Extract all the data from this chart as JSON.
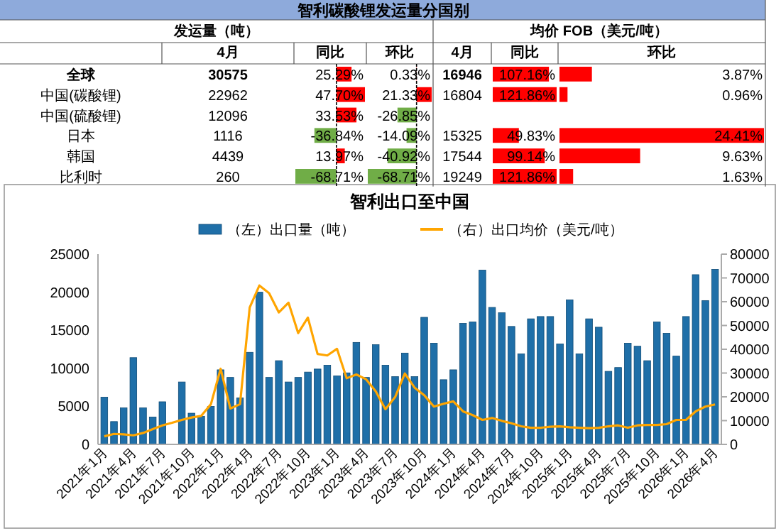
{
  "chart_data": [
    {
      "type": "other",
      "title": "智利碳酸锂发运量分国别",
      "annotations": [
        "发运量（吨）",
        "均价 FOB（美元/吨）",
        "4月",
        "同比",
        "环比",
        "4月",
        "同比",
        "环比"
      ],
      "categories": [
        "全球",
        "中国(碳酸锂)",
        "中国(硫酸锂)",
        "日本",
        "韩国",
        "比利时"
      ],
      "series": [
        {
          "values": [
            30575,
            22962,
            12096,
            1116,
            4439,
            260
          ],
          "value_labels": [
            "30575",
            "22962",
            "12096",
            "1116",
            "4439",
            "260"
          ]
        },
        {
          "values": [
            25.29,
            47.7,
            33.53,
            -36.84,
            13.97,
            -68.71
          ],
          "value_labels": [
            "25.29%",
            "47.70%",
            "33.53%",
            "-36.84%",
            "13.97%",
            "-68.71%"
          ],
          "colors": [
            "#ff0000",
            "#ff0000",
            "#ff0000",
            "#70ad47",
            "#ff0000",
            "#70ad47"
          ]
        },
        {
          "values": [
            0.33,
            21.33,
            -26.85,
            -14.09,
            -40.92,
            -68.71
          ],
          "value_labels": [
            "0.33%",
            "21.33%",
            "-26.85%",
            "-14.09%",
            "-40.92%",
            "-68.71%"
          ],
          "colors": [
            "#ff0000",
            "#ff0000",
            "#70ad47",
            "#70ad47",
            "#70ad47",
            "#70ad47"
          ]
        },
        {
          "values": [
            16946,
            16804,
            null,
            15325,
            17544,
            19249
          ],
          "value_labels": [
            "16946",
            "16804",
            null,
            "15325",
            "17544",
            "19249"
          ]
        },
        {
          "values": [
            107.16,
            121.86,
            null,
            49.83,
            99.14,
            121.86
          ],
          "value_labels": [
            "107.16%",
            "121.86%",
            null,
            "49.83%",
            "99.14%",
            "121.86%"
          ],
          "colors": [
            "#ff0000",
            "#ff0000",
            null,
            "#ff0000",
            "#ff0000",
            "#ff0000"
          ]
        },
        {
          "values": [
            3.87,
            0.96,
            null,
            24.41,
            9.63,
            1.63
          ],
          "value_labels": [
            "3.87%",
            "0.96%",
            null,
            "24.41%",
            "9.63%",
            "1.63%"
          ],
          "colors": [
            "#ff0000",
            "#ff0000",
            null,
            "#ff0000",
            "#ff0000",
            "#ff0000"
          ]
        }
      ]
    },
    {
      "type": "bar",
      "title": "智利出口至中国",
      "legend": "top",
      "categories": [
        "2021年1月",
        null,
        null,
        "2021年4月",
        null,
        null,
        "2021年7月",
        null,
        null,
        "2021年10月",
        null,
        null,
        "2022年1月",
        null,
        null,
        "2022年4月",
        null,
        null,
        "2022年7月",
        null,
        null,
        "2022年10月",
        null,
        null,
        "2023年1月",
        null,
        null,
        "2023年4月",
        null,
        null,
        "2023年7月",
        null,
        null,
        "2023年10月",
        null,
        null,
        "2024年1月",
        null,
        null,
        "2024年4月",
        null,
        null,
        "2024年7月",
        null,
        null,
        "2024年10月",
        null,
        null,
        "2025年1月",
        null,
        null,
        "2025年4月",
        null,
        null,
        "2025年7月",
        null,
        null,
        "2025年10月",
        null,
        null,
        "2026年1月",
        null,
        null,
        "2026年4月"
      ],
      "ylim": [
        0,
        25000
      ],
      "yticks": [
        0,
        5000,
        10000,
        15000,
        20000,
        25000
      ],
      "y2lim": [
        0,
        80000
      ],
      "y2ticks": [
        0,
        10000,
        20000,
        30000,
        40000,
        50000,
        60000,
        70000,
        80000
      ],
      "series": [
        {
          "name": "（左）出口量（吨）",
          "type": "bar",
          "color": "#1f6fa8",
          "values": [
            6200,
            3000,
            4800,
            11400,
            4800,
            3600,
            5600,
            0,
            8200,
            4100,
            3700,
            5000,
            9800,
            8800,
            6100,
            12100,
            20000,
            8800,
            11000,
            8200,
            8800,
            9500,
            9900,
            10400,
            9000,
            9400,
            13400,
            8800,
            13100,
            10400,
            8900,
            12000,
            8900,
            16700,
            13300,
            8500,
            9800,
            15900,
            16100,
            22900,
            18000,
            17300,
            15500,
            11900,
            16500,
            16800,
            16800,
            13200,
            19000,
            11900,
            16500,
            15400,
            9600,
            10100,
            13300,
            12900,
            11000,
            16100,
            14600,
            11600,
            16800,
            22300,
            18900,
            23000
          ]
        },
        {
          "name": "（右）出口均价（美元/吨）",
          "type": "line",
          "axis": "y2",
          "color": "#ffa500",
          "values": [
            3400,
            4400,
            4200,
            3800,
            4800,
            6400,
            8000,
            9100,
            10300,
            11300,
            12000,
            16900,
            31800,
            15100,
            16900,
            57600,
            66800,
            63600,
            55500,
            59600,
            46800,
            53300,
            38000,
            37400,
            40200,
            27800,
            29400,
            27400,
            22300,
            14800,
            19900,
            29800,
            23900,
            20700,
            15900,
            17100,
            18100,
            13900,
            12300,
            10300,
            11100,
            9900,
            8900,
            7600,
            7000,
            7000,
            7400,
            7600,
            7200,
            7000,
            6800,
            7000,
            7600,
            8000,
            7000,
            8000,
            8200,
            8200,
            8500,
            10300,
            10300,
            13900,
            15900,
            16800
          ]
        }
      ]
    }
  ]
}
